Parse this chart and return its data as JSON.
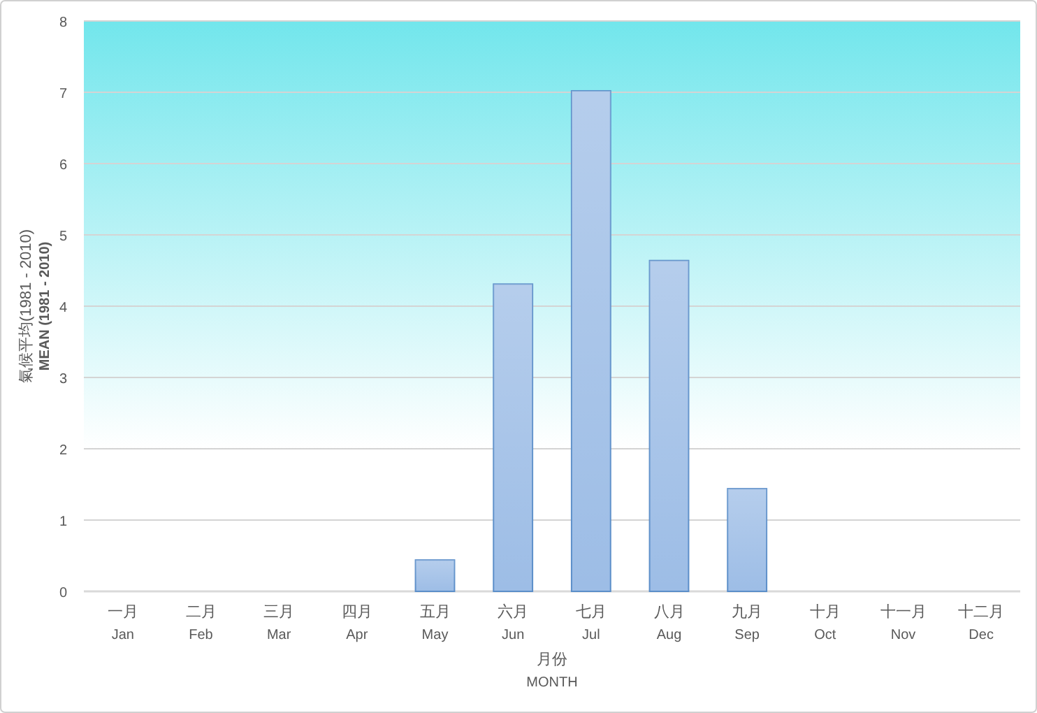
{
  "chart_data": {
    "type": "bar",
    "categories": [
      "一月\nJan",
      "二月\nFeb",
      "三月\nMar",
      "四月\nApr",
      "五月\nMay",
      "六月\nJun",
      "七月\nJul",
      "八月\nAug",
      "九月\nSep",
      "十月\nOct",
      "十一月\nNov",
      "十二月\nDec"
    ],
    "values": [
      0,
      0,
      0,
      0,
      0.44,
      4.31,
      7.02,
      4.64,
      1.44,
      0,
      0,
      0
    ],
    "color": "#9dbde6",
    "xlabel": "月份\nMONTH",
    "ylabel": "氣候平均(1981 - 2010)\nMEAN (1981 - 2010)",
    "ylim": [
      0,
      8
    ],
    "yticks": [
      0,
      1,
      2,
      3,
      4,
      5,
      6,
      7,
      8
    ],
    "grid": "y"
  }
}
